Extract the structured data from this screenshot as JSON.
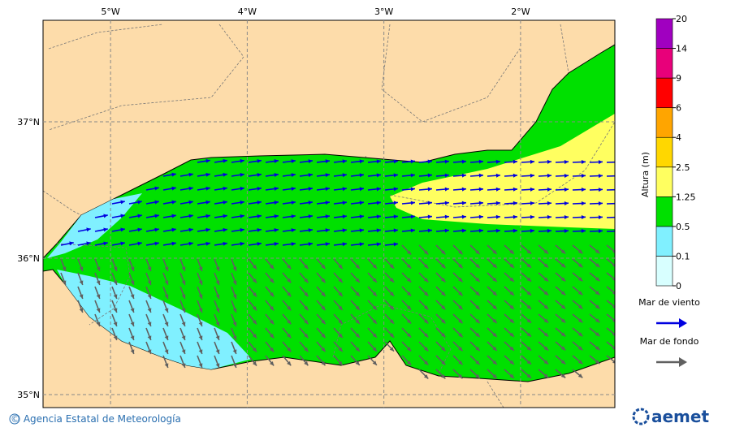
{
  "map": {
    "lon_range": [
      -5.494,
      -1.31
    ],
    "lat_range": [
      34.905,
      37.744
    ],
    "lon_ticks": [
      {
        "value": -5,
        "label": "5°W"
      },
      {
        "value": -4,
        "label": "4°W"
      },
      {
        "value": -3,
        "label": "3°W"
      },
      {
        "value": -2,
        "label": "2°W"
      }
    ],
    "lat_ticks": [
      {
        "value": 37,
        "label": "37°N"
      },
      {
        "value": 36,
        "label": "36°N"
      },
      {
        "value": 35,
        "label": "35°N"
      }
    ],
    "colorbar": {
      "title": "Altura (m)",
      "levels": [
        0,
        0.1,
        0.5,
        1.25,
        2.5,
        4,
        6,
        9,
        14,
        20
      ],
      "colors": [
        "#d8ffff",
        "#80f0ff",
        "#00e000",
        "#ffff60",
        "#ffd700",
        "#ffa500",
        "#ff0000",
        "#e8007a",
        "#a000c0"
      ]
    },
    "legend": [
      {
        "label": "Mar de viento",
        "color": "#0000e0"
      },
      {
        "label": "Mar de fondo",
        "color": "#606060"
      }
    ]
  },
  "footer": {
    "credit": "© Agencia Estatal de Meteorología",
    "logo": "aemet"
  }
}
